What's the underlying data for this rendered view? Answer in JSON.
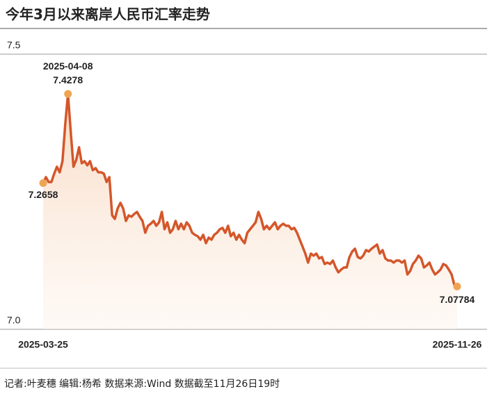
{
  "chart_data": {
    "type": "line",
    "title": "今年3月以来离岸人民币汇率走势",
    "footer": "记者:叶麦穗  编辑:杨希  数据来源:Wind  数据截至11月26日19时",
    "color": "#d4562a",
    "marker_color": "#f0a452",
    "ylim": [
      7.0,
      7.5
    ],
    "yticks": [
      {
        "value": 7,
        "label": "7.0"
      },
      7.5
    ],
    "grid": true,
    "categories": [
      "2025-03-25",
      null,
      null,
      null,
      null,
      null,
      null,
      null,
      null,
      "2025-04-08",
      null,
      null,
      null,
      null,
      null,
      null,
      null,
      null,
      null,
      null,
      null,
      null,
      null,
      null,
      null,
      null,
      null,
      null,
      null,
      null,
      null,
      null,
      null,
      null,
      null,
      null,
      null,
      null,
      null,
      null,
      null,
      null,
      null,
      null,
      null,
      null,
      null,
      null,
      null,
      null,
      null,
      null,
      null,
      null,
      null,
      null,
      null,
      null,
      null,
      null,
      null,
      null,
      null,
      null,
      null,
      null,
      null,
      null,
      null,
      null,
      null,
      null,
      null,
      null,
      null,
      null,
      null,
      null,
      null,
      null,
      null,
      null,
      null,
      null,
      null,
      null,
      null,
      null,
      null,
      null,
      null,
      null,
      null,
      null,
      null,
      null,
      null,
      null,
      null,
      null,
      null,
      null,
      null,
      null,
      null,
      null,
      null,
      null,
      null,
      null,
      null,
      null,
      null,
      null,
      null,
      null,
      null,
      null,
      null,
      null,
      null,
      null,
      null,
      null,
      null,
      null,
      null,
      null,
      null,
      null,
      null,
      null,
      null,
      null,
      null,
      null,
      null,
      null,
      null,
      null,
      null,
      null,
      null,
      null,
      null,
      null,
      null,
      null,
      null,
      null,
      "2025-11-26"
    ],
    "values": [
      7.2658,
      7.2765,
      7.2677,
      7.2677,
      7.2828,
      7.2955,
      7.2854,
      7.3056,
      7.3712,
      7.4278,
      7.3586,
      7.2955,
      7.3081,
      7.3308,
      7.3018,
      7.3056,
      7.298,
      7.3056,
      7.2891,
      7.2929,
      7.2854,
      7.2854,
      7.2828,
      7.2677,
      7.2765,
      7.2071,
      7.2008,
      7.2197,
      7.2298,
      7.2197,
      7.197,
      7.2071,
      7.2045,
      7.2096,
      7.2134,
      7.2045,
      7.197,
      7.1755,
      7.1881,
      7.1919,
      7.197,
      7.1881,
      7.1944,
      7.2134,
      7.1818,
      7.1944,
      7.1755,
      7.1818,
      7.197,
      7.1818,
      7.1919,
      7.1818,
      7.1944,
      7.1881,
      7.1755,
      7.1717,
      7.1692,
      7.1629,
      7.1717,
      7.1566,
      7.1667,
      7.1629,
      7.1717,
      7.1755,
      7.1818,
      7.1843,
      7.1755,
      7.1881,
      7.1692,
      7.1755,
      7.1629,
      7.1717,
      7.1629,
      7.1566,
      7.1755,
      7.1818,
      7.1881,
      7.1944,
      7.2134,
      7.2008,
      7.1818,
      7.1881,
      7.1818,
      7.1881,
      7.1944,
      7.1818,
      7.1881,
      7.1919,
      7.1881,
      7.1881,
      7.1818,
      7.1843,
      7.1755,
      7.1629,
      7.1503,
      7.1376,
      7.1212,
      7.1376,
      7.1338,
      7.1376,
      7.1288,
      7.1313,
      7.1187,
      7.1212,
      7.1187,
      7.125,
      7.1124,
      7.1035,
      7.1086,
      7.1124,
      7.1124,
      7.1313,
      7.1414,
      7.1465,
      7.1313,
      7.1288,
      7.1338,
      7.1439,
      7.1414,
      7.1465,
      7.1503,
      7.154,
      7.1376,
      7.1439,
      7.1288,
      7.125,
      7.125,
      7.1212,
      7.125,
      7.125,
      7.1212,
      7.125,
      7.0998,
      7.1061,
      7.1187,
      7.125,
      7.1338,
      7.1288,
      7.1124,
      7.1162,
      7.1212,
      7.1086,
      7.0998,
      7.1035,
      7.1086,
      7.1187,
      7.1162,
      7.1086,
      7.0998,
      7.0808,
      7.07784
    ]
  }
}
